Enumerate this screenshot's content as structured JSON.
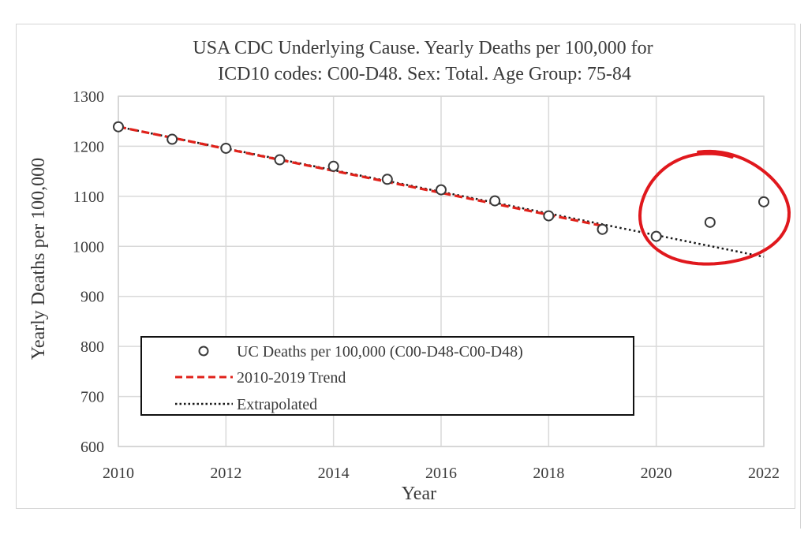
{
  "chart_data": {
    "type": "scatter",
    "title_lines": [
      "USA CDC Underlying Cause. Yearly Deaths per 100,000 for",
      "ICD10 codes: C00-D48. Sex: Total. Age Group: 75-84"
    ],
    "xlabel": "Year",
    "ylabel": "Yearly Deaths per 100,000",
    "xlim": [
      2010,
      2022
    ],
    "ylim": [
      600,
      1300
    ],
    "xticks": [
      2010,
      2012,
      2014,
      2016,
      2018,
      2020,
      2022
    ],
    "yticks": [
      600,
      700,
      800,
      900,
      1000,
      1100,
      1200,
      1300
    ],
    "grid": true,
    "legend_position": "bottom-left",
    "series": [
      {
        "name": "UC Deaths per 100,000 (C00-D48-C00-D48)",
        "kind": "markers",
        "marker": "open-circle",
        "color": "#3a3a3a",
        "x": [
          2010,
          2011,
          2012,
          2013,
          2014,
          2015,
          2016,
          2017,
          2018,
          2019,
          2020,
          2021,
          2022
        ],
        "y": [
          1239,
          1214,
          1196,
          1173,
          1160,
          1134,
          1113,
          1091,
          1061,
          1034,
          1020,
          1048,
          1089
        ]
      },
      {
        "name": "2010-2019 Trend",
        "kind": "line",
        "style": "dashed",
        "color": "#e0211a",
        "x": [
          2010,
          2019
        ],
        "y": [
          1239,
          1041
        ]
      },
      {
        "name": "Extrapolated",
        "kind": "line",
        "style": "dotted",
        "color": "#1a1a1a",
        "x": [
          2010,
          2022
        ],
        "y": [
          1239,
          979
        ]
      }
    ],
    "annotation": {
      "type": "hand-drawn-circle",
      "color": "#e0181d",
      "encloses_x": [
        2020,
        2021,
        2022
      ]
    }
  }
}
